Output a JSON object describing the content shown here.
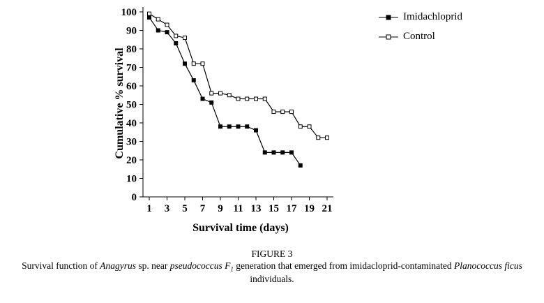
{
  "figure": {
    "caption_title": "FIGURE 3",
    "caption_parts": {
      "p0": "Survival function of ",
      "p1": "Anagyrus",
      "p2": " sp. near ",
      "p3": "pseudococcus F",
      "p4": "1",
      "p5": " generation that emerged from imidacloprid-contaminated ",
      "p6": "Planococcus ficus",
      "p7": " individuals."
    }
  },
  "legend": {
    "items": [
      {
        "label": "Imidachloprid",
        "marker": "filled-square"
      },
      {
        "label": "Control",
        "marker": "open-square"
      }
    ]
  },
  "colors": {
    "line": "#000000",
    "filled_marker": "#000000",
    "open_marker_fill": "#ffffff"
  },
  "chart_data": {
    "type": "line",
    "title": "",
    "xlabel": "Survival time (days)",
    "ylabel": "Cumulative % survival",
    "xlim": [
      1,
      21
    ],
    "ylim": [
      0,
      100
    ],
    "grid": false,
    "legend_position": "top-right",
    "x_ticks": [
      1,
      3,
      5,
      7,
      9,
      11,
      13,
      15,
      17,
      19,
      21
    ],
    "y_ticks": [
      0,
      10,
      20,
      30,
      40,
      50,
      60,
      70,
      80,
      90,
      100
    ],
    "series": [
      {
        "name": "Imidachloprid",
        "marker": "filled-square",
        "x": [
          1,
          2,
          3,
          4,
          5,
          6,
          7,
          8,
          9,
          10,
          11,
          12,
          13,
          14,
          15,
          16,
          17,
          18
        ],
        "values": [
          97,
          90,
          89,
          83,
          72,
          63,
          53,
          51,
          38,
          38,
          38,
          38,
          36,
          24,
          24,
          24,
          24,
          17
        ]
      },
      {
        "name": "Control",
        "marker": "open-square",
        "x": [
          1,
          2,
          3,
          4,
          5,
          6,
          7,
          8,
          9,
          10,
          11,
          12,
          13,
          14,
          15,
          16,
          17,
          18,
          19,
          20,
          21
        ],
        "values": [
          99,
          96,
          93,
          87,
          86,
          72,
          72,
          56,
          56,
          55,
          53,
          53,
          53,
          53,
          46,
          46,
          46,
          38,
          38,
          32,
          32
        ]
      }
    ]
  }
}
